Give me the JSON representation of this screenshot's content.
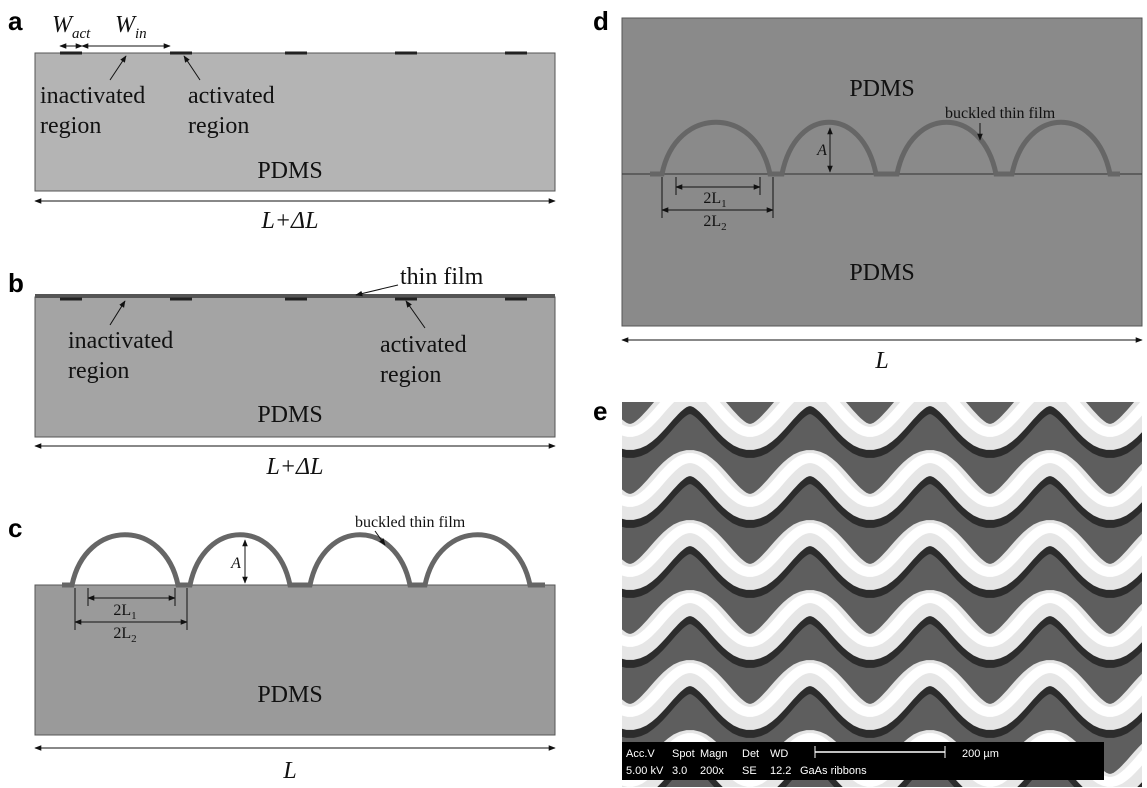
{
  "panels": [
    {
      "label": "a",
      "w_act": {
        "base": "W",
        "sub": "act"
      },
      "w_in": {
        "base": "W",
        "sub": "in"
      },
      "inactivated": [
        "inactivated",
        "region"
      ],
      "activated": [
        "activated",
        "region"
      ],
      "substrate": "PDMS",
      "length": "L+ΔL"
    },
    {
      "label": "b",
      "film": "thin film",
      "inactivated": [
        "inactivated",
        "region"
      ],
      "activated": [
        "activated",
        "region"
      ],
      "substrate": "PDMS",
      "length": "L+ΔL"
    },
    {
      "label": "c",
      "film": "buckled thin film",
      "amplitude": "A",
      "l1": {
        "base": "2L",
        "sub": "1"
      },
      "l2": {
        "base": "2L",
        "sub": "2"
      },
      "substrate": "PDMS",
      "length": "L"
    },
    {
      "label": "d",
      "top_substrate": "PDMS",
      "film": "buckled thin film",
      "amplitude": "A",
      "l1": {
        "base": "2L",
        "sub": "1"
      },
      "l2": {
        "base": "2L",
        "sub": "2"
      },
      "bottom_substrate": "PDMS",
      "length": "L"
    },
    {
      "label": "e",
      "info_header": [
        "Acc.V",
        "Spot",
        "Magn",
        "Det",
        "WD"
      ],
      "scale": "200 µm",
      "info_values": [
        "5.00 kV",
        "3.0",
        "200x",
        "SE",
        "12.2",
        "GaAs ribbons"
      ]
    }
  ]
}
